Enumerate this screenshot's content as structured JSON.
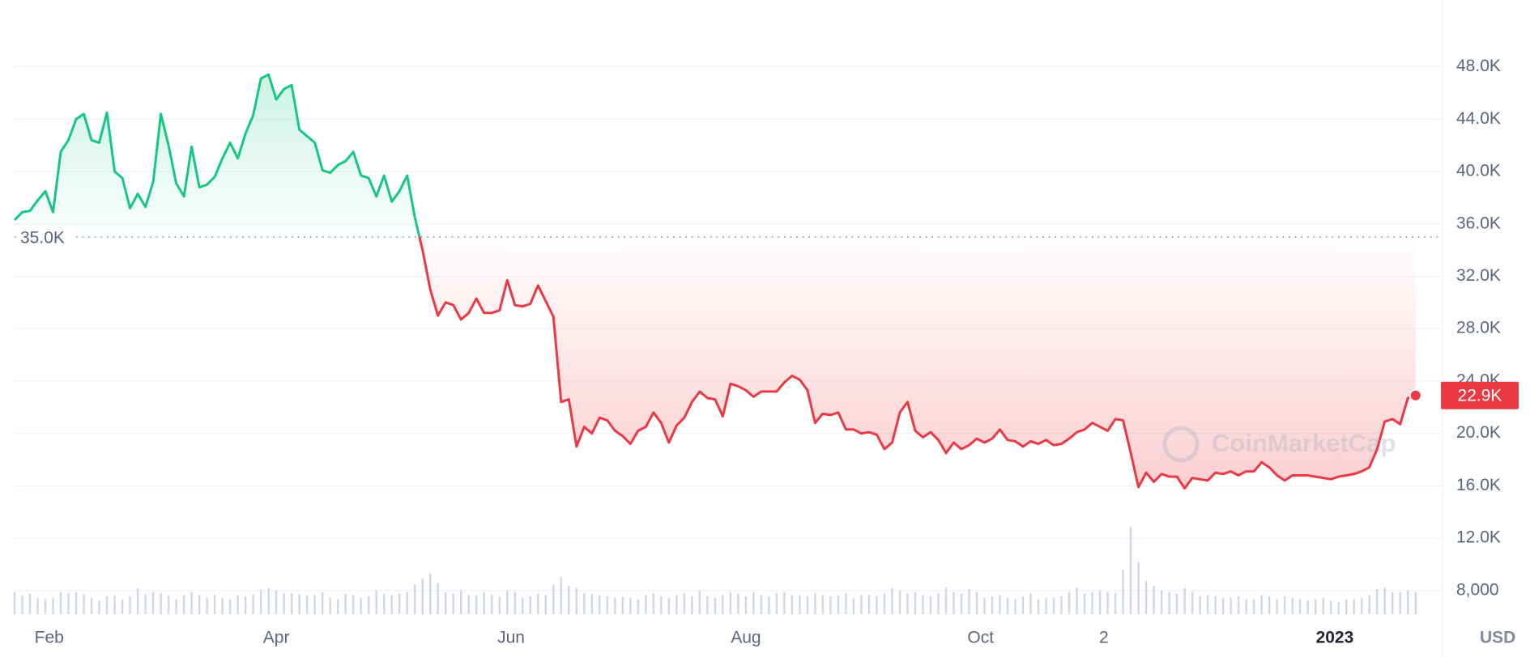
{
  "chart_data": {
    "type": "line",
    "x": [
      22,
      24,
      26,
      28,
      30,
      32,
      34,
      36,
      38,
      40,
      42,
      44,
      46,
      48,
      50,
      52,
      54,
      56,
      58,
      60,
      62,
      64,
      66,
      68,
      70,
      72,
      74,
      76,
      78,
      80,
      82,
      84,
      86,
      88,
      90,
      92,
      94,
      96,
      98,
      100,
      102,
      104,
      106,
      108,
      110,
      112,
      114,
      116,
      118,
      120,
      122,
      124,
      126,
      128,
      130,
      132,
      134,
      136,
      138,
      140,
      142,
      144,
      146,
      148,
      150,
      152,
      154,
      156,
      158,
      160,
      162,
      164,
      166,
      168,
      170,
      172,
      174,
      176,
      178,
      180,
      182,
      184,
      186,
      188,
      190,
      192,
      194,
      196,
      198,
      200,
      202,
      204,
      206,
      208,
      210,
      212,
      214,
      216,
      218,
      220,
      222,
      224,
      226,
      228,
      230,
      232,
      234,
      236,
      238,
      240,
      242,
      244,
      246,
      248,
      250,
      252,
      254,
      256,
      258,
      260,
      262,
      264,
      266,
      268,
      270,
      272,
      274,
      276,
      278,
      280,
      282,
      284,
      286,
      288,
      290,
      292,
      294,
      296,
      298,
      300,
      302,
      304,
      306,
      308,
      310,
      312,
      314,
      316,
      318,
      320,
      322,
      324,
      326,
      328,
      330,
      332,
      334,
      336,
      338,
      340,
      342,
      344,
      346,
      348,
      350,
      352,
      354,
      356,
      358,
      360,
      362,
      364,
      366,
      368,
      370,
      372,
      374,
      376,
      378,
      380,
      382,
      384,
      386
    ],
    "values": [
      36300,
      36900,
      37000,
      37800,
      38500,
      36900,
      41500,
      42400,
      44000,
      44400,
      42400,
      42200,
      44500,
      40000,
      39500,
      37200,
      38300,
      37300,
      39200,
      44400,
      42000,
      39100,
      38100,
      41900,
      38800,
      39000,
      39600,
      41000,
      42200,
      41000,
      42900,
      44300,
      47100,
      47400,
      45500,
      46300,
      46600,
      43200,
      42700,
      42200,
      40100,
      39900,
      40500,
      40800,
      41500,
      39700,
      39500,
      38100,
      39700,
      37700,
      38500,
      39700,
      36500,
      34000,
      31000,
      29000,
      30000,
      29800,
      28700,
      29200,
      30300,
      29200,
      29200,
      29400,
      31700,
      29800,
      29700,
      29900,
      31300,
      30100,
      28900,
      22400,
      22600,
      19000,
      20500,
      20000,
      21200,
      21000,
      20200,
      19800,
      19200,
      20200,
      20500,
      21600,
      20800,
      19300,
      20600,
      21200,
      22400,
      23200,
      22700,
      22600,
      21300,
      23800,
      23600,
      23300,
      22800,
      23200,
      23200,
      23200,
      23900,
      24400,
      24100,
      23300,
      20800,
      21500,
      21400,
      21600,
      20300,
      20300,
      20000,
      20100,
      19900,
      18800,
      19300,
      21600,
      22400,
      20200,
      19700,
      20100,
      19500,
      18500,
      19300,
      18800,
      19100,
      19600,
      19300,
      19600,
      20300,
      19500,
      19400,
      19000,
      19400,
      19200,
      19500,
      19100,
      19200,
      19600,
      20100,
      20300,
      20800,
      20500,
      20200,
      21100,
      21000,
      18500,
      15900,
      17000,
      16300,
      16900,
      16700,
      16700,
      15800,
      16600,
      16500,
      16400,
      17000,
      16900,
      17100,
      16800,
      17100,
      17100,
      17800,
      17400,
      16800,
      16400,
      16800,
      16800,
      16800,
      16700,
      16600,
      16500,
      16700,
      16800,
      16900,
      17100,
      17400,
      18800,
      20900,
      21100,
      20700,
      22700,
      22900
    ],
    "up_color": "#16c784",
    "down_color": "#ea3943",
    "baseline": {
      "value": 35000,
      "label": "35.0K"
    },
    "current_price_label": "22.9K",
    "volume": {
      "color": "#cfd6e4",
      "values": [
        30,
        25,
        28,
        22,
        20,
        22,
        30,
        28,
        30,
        27,
        22,
        18,
        24,
        25,
        20,
        24,
        35,
        27,
        30,
        28,
        25,
        20,
        26,
        30,
        26,
        22,
        26,
        22,
        20,
        25,
        24,
        27,
        33,
        35,
        32,
        28,
        28,
        27,
        25,
        26,
        30,
        22,
        20,
        28,
        26,
        22,
        24,
        32,
        27,
        26,
        28,
        30,
        40,
        48,
        55,
        42,
        30,
        28,
        33,
        26,
        25,
        30,
        27,
        23,
        32,
        30,
        22,
        24,
        28,
        26,
        40,
        50,
        38,
        35,
        28,
        27,
        25,
        24,
        22,
        23,
        22,
        20,
        26,
        28,
        24,
        22,
        26,
        28,
        24,
        32,
        24,
        22,
        26,
        30,
        28,
        24,
        30,
        26,
        24,
        28,
        30,
        26,
        25,
        24,
        28,
        26,
        24,
        25,
        28,
        22,
        26,
        26,
        24,
        28,
        35,
        32,
        28,
        30,
        26,
        24,
        28,
        36,
        30,
        28,
        34,
        30,
        22,
        24,
        26,
        22,
        20,
        24,
        28,
        20,
        22,
        22,
        24,
        30,
        36,
        28,
        30,
        32,
        30,
        28,
        60,
        118,
        70,
        45,
        38,
        32,
        30,
        28,
        35,
        30,
        24,
        26,
        24,
        22,
        22,
        24,
        20,
        20,
        26,
        24,
        20,
        24,
        22,
        20,
        18,
        20,
        22,
        18,
        16,
        20,
        20,
        22,
        26,
        34,
        36,
        30,
        30,
        32,
        30
      ]
    },
    "y2lim": [
      0,
      830
    ],
    "xlim": [
      22,
      393
    ],
    "xticks": [
      {
        "value": 31,
        "label": "Feb"
      },
      {
        "value": 90,
        "label": "Apr"
      },
      {
        "value": 151,
        "label": "Jun"
      },
      {
        "value": 212,
        "label": "Aug"
      },
      {
        "value": 273,
        "label": "Oct"
      },
      {
        "value": 305,
        "label": "2"
      },
      {
        "value": 365,
        "label": "2023"
      }
    ],
    "ylim": [
      6200,
      53100
    ],
    "yticks": [
      {
        "value": 8000,
        "label": "8,000"
      },
      {
        "value": 12000,
        "label": "12.0K"
      },
      {
        "value": 16000,
        "label": "16.0K"
      },
      {
        "value": 20000,
        "label": "20.0K"
      },
      {
        "value": 24000,
        "label": "24.0K"
      },
      {
        "value": 28000,
        "label": "28.0K"
      },
      {
        "value": 32000,
        "label": "32.0K"
      },
      {
        "value": 36000,
        "label": "36.0K"
      },
      {
        "value": 40000,
        "label": "40.0K"
      },
      {
        "value": 44000,
        "label": "44.0K"
      },
      {
        "value": 48000,
        "label": "48.0K"
      }
    ],
    "grid": true,
    "y_unit_label": "USD",
    "watermark": "CoinMarketCap"
  }
}
